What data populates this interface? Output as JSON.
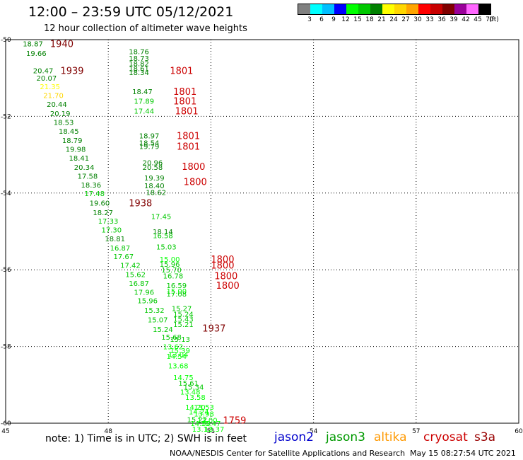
{
  "header": {
    "title": "12:00 – 23:59 UTC 05/12/2021",
    "subtitle": "12 hour collection of altimeter wave heights"
  },
  "legend": {
    "colors": [
      "#808080",
      "#00ffff",
      "#00bfff",
      "#0000ff",
      "#00ff00",
      "#00c800",
      "#008000",
      "#ffff00",
      "#ffd700",
      "#ffa500",
      "#ff0000",
      "#c80000",
      "#800000",
      "#990099",
      "#ff66ff",
      "#000000"
    ],
    "labels": [
      "3",
      "6",
      "9",
      "12",
      "15",
      "18",
      "21",
      "24",
      "27",
      "30",
      "33",
      "36",
      "39",
      "42",
      "45",
      "70",
      "(ft)"
    ]
  },
  "footer": {
    "note": "note:  1) Time is in UTC;  2) SWH is in feet",
    "satellites": [
      {
        "name": "jason2",
        "color": "#0000cc"
      },
      {
        "name": "jason3",
        "color": "#009900"
      },
      {
        "name": "altika",
        "color": "#ff9900"
      },
      {
        "name": "cryosat",
        "color": "#cc0000"
      },
      {
        "name": "s3a",
        "color": "#990000"
      }
    ],
    "credit": "NOAA/NESDIS Center for Satellite Applications and Research",
    "timestamp": "May 15 08:27:54 UTC 2021"
  },
  "chart_data": {
    "type": "scatter",
    "xlim": [
      45,
      60
    ],
    "ylim": [
      -60,
      -50
    ],
    "xticks": [
      "45",
      "48",
      "51",
      "54",
      "57",
      "60"
    ],
    "yticks": [
      "-50",
      "-52",
      "-54",
      "-56",
      "-58",
      "-60"
    ],
    "grid": true,
    "points": [
      {
        "x": 45.5,
        "y": -50.1,
        "v": "18.87",
        "c": "#008000"
      },
      {
        "x": 45.6,
        "y": -50.35,
        "v": "19.66",
        "c": "#008000"
      },
      {
        "x": 45.8,
        "y": -50.8,
        "v": "20.47",
        "c": "#008000"
      },
      {
        "x": 45.9,
        "y": -51.0,
        "v": "20.07",
        "c": "#008000"
      },
      {
        "x": 46.0,
        "y": -51.22,
        "v": "21.35",
        "c": "#ffff00"
      },
      {
        "x": 46.1,
        "y": -51.45,
        "v": "21.70",
        "c": "#ffd700"
      },
      {
        "x": 46.2,
        "y": -51.68,
        "v": "20.44",
        "c": "#008000"
      },
      {
        "x": 46.3,
        "y": -51.92,
        "v": "20.19",
        "c": "#008000"
      },
      {
        "x": 46.4,
        "y": -52.15,
        "v": "18.53",
        "c": "#008000"
      },
      {
        "x": 46.55,
        "y": -52.38,
        "v": "18.45",
        "c": "#008000"
      },
      {
        "x": 46.65,
        "y": -52.62,
        "v": "18.79",
        "c": "#008000"
      },
      {
        "x": 46.75,
        "y": -52.85,
        "v": "19.98",
        "c": "#008000"
      },
      {
        "x": 46.85,
        "y": -53.08,
        "v": "18.41",
        "c": "#008000"
      },
      {
        "x": 47.0,
        "y": -53.32,
        "v": "20.34",
        "c": "#008000"
      },
      {
        "x": 47.1,
        "y": -53.55,
        "v": "17.58",
        "c": "#008000"
      },
      {
        "x": 47.2,
        "y": -53.78,
        "v": "18.36",
        "c": "#008000"
      },
      {
        "x": 47.3,
        "y": -54.0,
        "v": "17.48",
        "c": "#00c800"
      },
      {
        "x": 47.45,
        "y": -54.25,
        "v": "19.60",
        "c": "#008000"
      },
      {
        "x": 47.55,
        "y": -54.5,
        "v": "18.27",
        "c": "#008000"
      },
      {
        "x": 47.7,
        "y": -54.72,
        "v": "17.33",
        "c": "#00c800"
      },
      {
        "x": 47.8,
        "y": -54.95,
        "v": "17.30",
        "c": "#00c800"
      },
      {
        "x": 47.9,
        "y": -55.18,
        "v": "18.81",
        "c": "#008000"
      },
      {
        "x": 48.05,
        "y": -55.42,
        "v": "16.87",
        "c": "#00c800"
      },
      {
        "x": 48.15,
        "y": -55.65,
        "v": "17.67",
        "c": "#00c800"
      },
      {
        "x": 48.35,
        "y": -55.88,
        "v": "17.42",
        "c": "#00c800"
      },
      {
        "x": 48.5,
        "y": -56.12,
        "v": "15.62",
        "c": "#00c800"
      },
      {
        "x": 48.6,
        "y": -56.35,
        "v": "16.87",
        "c": "#00c800"
      },
      {
        "x": 48.75,
        "y": -56.58,
        "v": "17.96",
        "c": "#00c800"
      },
      {
        "x": 48.85,
        "y": -56.8,
        "v": "15.96",
        "c": "#00c800"
      },
      {
        "x": 49.05,
        "y": -57.05,
        "v": "15.32",
        "c": "#00c800"
      },
      {
        "x": 49.15,
        "y": -57.3,
        "v": "15.07",
        "c": "#00c800"
      },
      {
        "x": 49.3,
        "y": -57.55,
        "v": "15.24",
        "c": "#00c800"
      },
      {
        "x": 48.6,
        "y": -50.3,
        "v": "18.76",
        "c": "#008000"
      },
      {
        "x": 48.6,
        "y": -50.48,
        "v": "18.73",
        "c": "#008000"
      },
      {
        "x": 48.6,
        "y": -50.62,
        "v": "18.82",
        "c": "#008000"
      },
      {
        "x": 48.6,
        "y": -50.75,
        "v": "18.61",
        "c": "#008000"
      },
      {
        "x": 48.6,
        "y": -50.85,
        "v": "18.34",
        "c": "#008000"
      },
      {
        "x": 48.7,
        "y": -51.35,
        "v": "18.47",
        "c": "#008000"
      },
      {
        "x": 48.75,
        "y": -51.6,
        "v": "17.89",
        "c": "#00c800"
      },
      {
        "x": 48.75,
        "y": -51.85,
        "v": "17.44",
        "c": "#00c800"
      },
      {
        "x": 48.9,
        "y": -52.5,
        "v": "18.97",
        "c": "#008000"
      },
      {
        "x": 48.9,
        "y": -52.68,
        "v": "18.54",
        "c": "#008000"
      },
      {
        "x": 48.9,
        "y": -52.78,
        "v": "19.79",
        "c": "#008000"
      },
      {
        "x": 49.0,
        "y": -53.2,
        "v": "20.96",
        "c": "#008000"
      },
      {
        "x": 49.0,
        "y": -53.32,
        "v": "20.58",
        "c": "#008000"
      },
      {
        "x": 49.05,
        "y": -53.6,
        "v": "19.39",
        "c": "#008000"
      },
      {
        "x": 49.05,
        "y": -53.8,
        "v": "18.40",
        "c": "#008000"
      },
      {
        "x": 49.1,
        "y": -53.98,
        "v": "18.62",
        "c": "#008000"
      },
      {
        "x": 49.25,
        "y": -54.6,
        "v": "17.45",
        "c": "#00c800"
      },
      {
        "x": 49.3,
        "y": -55.0,
        "v": "18.14",
        "c": "#008000"
      },
      {
        "x": 49.3,
        "y": -55.1,
        "v": "16.58",
        "c": "#00c800"
      },
      {
        "x": 49.4,
        "y": -55.4,
        "v": "15.03",
        "c": "#00c800"
      },
      {
        "x": 49.5,
        "y": -55.72,
        "v": "15.00",
        "c": "#00ff00"
      },
      {
        "x": 49.5,
        "y": -55.85,
        "v": "15.96",
        "c": "#00c800"
      },
      {
        "x": 49.55,
        "y": -56.0,
        "v": "15.70",
        "c": "#00c800"
      },
      {
        "x": 49.6,
        "y": -56.15,
        "v": "16.78",
        "c": "#00c800"
      },
      {
        "x": 49.7,
        "y": -56.4,
        "v": "16.59",
        "c": "#00c800"
      },
      {
        "x": 49.7,
        "y": -56.55,
        "v": "15.00",
        "c": "#00ff00"
      },
      {
        "x": 49.7,
        "y": -56.62,
        "v": "17.08",
        "c": "#00c800"
      },
      {
        "x": 49.85,
        "y": -57.0,
        "v": "15.27",
        "c": "#00c800"
      },
      {
        "x": 49.9,
        "y": -57.15,
        "v": "15.24",
        "c": "#00c800"
      },
      {
        "x": 49.9,
        "y": -57.28,
        "v": "15.43",
        "c": "#00c800"
      },
      {
        "x": 49.9,
        "y": -57.42,
        "v": "15.21",
        "c": "#00c800"
      },
      {
        "x": 49.55,
        "y": -57.75,
        "v": "15.68",
        "c": "#00c800"
      },
      {
        "x": 49.8,
        "y": -57.8,
        "v": "15.13",
        "c": "#00c800"
      },
      {
        "x": 49.6,
        "y": -58.0,
        "v": "13.62",
        "c": "#00ff00"
      },
      {
        "x": 49.8,
        "y": -58.1,
        "v": "15.39",
        "c": "#00ff00"
      },
      {
        "x": 49.7,
        "y": -58.25,
        "v": "14.54",
        "c": "#00ff00"
      },
      {
        "x": 49.75,
        "y": -58.2,
        "v": "13.04",
        "c": "#00ff00"
      },
      {
        "x": 49.75,
        "y": -58.5,
        "v": "13.68",
        "c": "#00ff00"
      },
      {
        "x": 49.9,
        "y": -58.8,
        "v": "14.75",
        "c": "#00ff00"
      },
      {
        "x": 50.05,
        "y": -58.95,
        "v": "15.61",
        "c": "#00c800"
      },
      {
        "x": 50.2,
        "y": -59.05,
        "v": "15.34",
        "c": "#00c800"
      },
      {
        "x": 50.1,
        "y": -59.18,
        "v": "13.48",
        "c": "#00ff00"
      },
      {
        "x": 50.25,
        "y": -59.32,
        "v": "13.58",
        "c": "#00ff00"
      },
      {
        "x": 50.25,
        "y": -59.58,
        "v": "14.20",
        "c": "#00ff00"
      },
      {
        "x": 50.5,
        "y": -59.58,
        "v": "13.53",
        "c": "#00ff00"
      },
      {
        "x": 50.35,
        "y": -59.7,
        "v": "14.24",
        "c": "#00ff00"
      },
      {
        "x": 50.5,
        "y": -59.75,
        "v": "13.98",
        "c": "#00ff00"
      },
      {
        "x": 50.3,
        "y": -59.9,
        "v": "15.22",
        "c": "#00c800"
      },
      {
        "x": 50.6,
        "y": -59.92,
        "v": "13.00",
        "c": "#00ff00"
      },
      {
        "x": 50.4,
        "y": -60.0,
        "v": "14.50",
        "c": "#00ff00"
      },
      {
        "x": 50.7,
        "y": -60.0,
        "v": "15.47",
        "c": "#00ff00"
      },
      {
        "x": 50.45,
        "y": -60.15,
        "v": "13.12",
        "c": "#00ff00"
      },
      {
        "x": 50.8,
        "y": -60.15,
        "v": "13.37",
        "c": "#00ff00"
      }
    ],
    "annotations": [
      {
        "x": 46.3,
        "y": -50.1,
        "v": "1940",
        "c": "#800000"
      },
      {
        "x": 46.6,
        "y": -50.8,
        "v": "1939",
        "c": "#800000"
      },
      {
        "x": 49.8,
        "y": -50.8,
        "v": "1801",
        "c": "#cc0000"
      },
      {
        "x": 49.9,
        "y": -51.35,
        "v": "1801",
        "c": "#cc0000"
      },
      {
        "x": 49.9,
        "y": -51.6,
        "v": "1801",
        "c": "#cc0000"
      },
      {
        "x": 49.95,
        "y": -51.85,
        "v": "1801",
        "c": "#cc0000"
      },
      {
        "x": 50.0,
        "y": -52.5,
        "v": "1801",
        "c": "#cc0000"
      },
      {
        "x": 50.0,
        "y": -52.78,
        "v": "1801",
        "c": "#cc0000"
      },
      {
        "x": 50.15,
        "y": -53.3,
        "v": "1800",
        "c": "#cc0000"
      },
      {
        "x": 50.2,
        "y": -53.7,
        "v": "1800",
        "c": "#cc0000"
      },
      {
        "x": 48.6,
        "y": -54.25,
        "v": "1938",
        "c": "#800000"
      },
      {
        "x": 51.0,
        "y": -55.72,
        "v": "1800",
        "c": "#cc0000"
      },
      {
        "x": 51.0,
        "y": -55.88,
        "v": "1800",
        "c": "#cc0000"
      },
      {
        "x": 51.1,
        "y": -56.15,
        "v": "1800",
        "c": "#cc0000"
      },
      {
        "x": 51.15,
        "y": -56.4,
        "v": "1800",
        "c": "#cc0000"
      },
      {
        "x": 50.75,
        "y": -57.52,
        "v": "1937",
        "c": "#800000"
      },
      {
        "x": 51.35,
        "y": -59.92,
        "v": "1759",
        "c": "#cc0000"
      }
    ]
  }
}
